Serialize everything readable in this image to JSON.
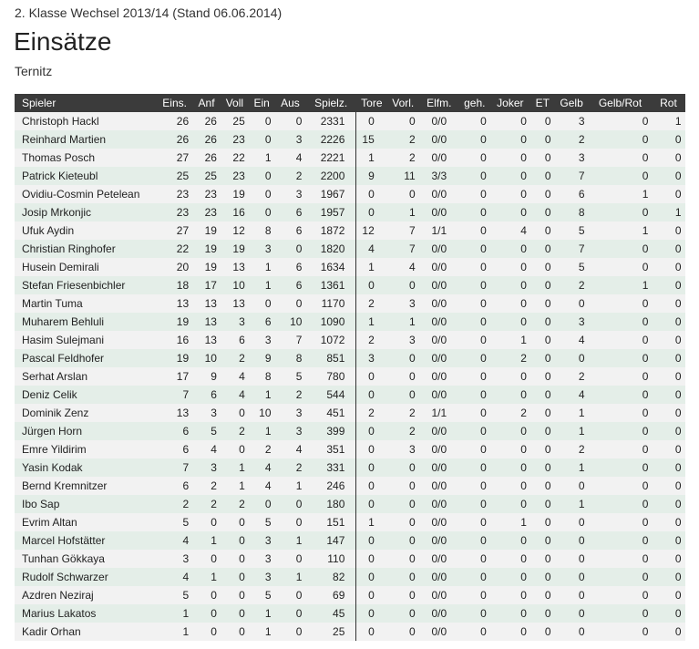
{
  "header": {
    "subtitle": "2. Klasse Wechsel 2013/14 (Stand 06.06.2014)",
    "title": "Einsätze",
    "team": "Ternitz"
  },
  "table": {
    "columns": [
      "Spieler",
      "Eins.",
      "Anf",
      "Voll",
      "Ein",
      "Aus",
      "Spielz.",
      "Tore",
      "Vorl.",
      "Elfm.",
      "geh.",
      "Joker",
      "ET",
      "Gelb",
      "Gelb/Rot",
      "Rot"
    ],
    "rows": [
      [
        "Christoph Hackl",
        "26",
        "26",
        "25",
        "0",
        "0",
        "2331",
        "0",
        "0",
        "0/0",
        "0",
        "0",
        "0",
        "3",
        "0",
        "1"
      ],
      [
        "Reinhard Martien",
        "26",
        "26",
        "23",
        "0",
        "3",
        "2226",
        "15",
        "2",
        "0/0",
        "0",
        "0",
        "0",
        "2",
        "0",
        "0"
      ],
      [
        "Thomas Posch",
        "27",
        "26",
        "22",
        "1",
        "4",
        "2221",
        "1",
        "2",
        "0/0",
        "0",
        "0",
        "0",
        "3",
        "0",
        "0"
      ],
      [
        "Patrick Kieteubl",
        "25",
        "25",
        "23",
        "0",
        "2",
        "2200",
        "9",
        "11",
        "3/3",
        "0",
        "0",
        "0",
        "7",
        "0",
        "0"
      ],
      [
        "Ovidiu-Cosmin Petelean",
        "23",
        "23",
        "19",
        "0",
        "3",
        "1967",
        "0",
        "0",
        "0/0",
        "0",
        "0",
        "0",
        "6",
        "1",
        "0"
      ],
      [
        "Josip Mrkonjic",
        "23",
        "23",
        "16",
        "0",
        "6",
        "1957",
        "0",
        "1",
        "0/0",
        "0",
        "0",
        "0",
        "8",
        "0",
        "1"
      ],
      [
        "Ufuk Aydin",
        "27",
        "19",
        "12",
        "8",
        "6",
        "1872",
        "12",
        "7",
        "1/1",
        "0",
        "4",
        "0",
        "5",
        "1",
        "0"
      ],
      [
        "Christian Ringhofer",
        "22",
        "19",
        "19",
        "3",
        "0",
        "1820",
        "4",
        "7",
        "0/0",
        "0",
        "0",
        "0",
        "7",
        "0",
        "0"
      ],
      [
        "Husein Demirali",
        "20",
        "19",
        "13",
        "1",
        "6",
        "1634",
        "1",
        "4",
        "0/0",
        "0",
        "0",
        "0",
        "5",
        "0",
        "0"
      ],
      [
        "Stefan Friesenbichler",
        "18",
        "17",
        "10",
        "1",
        "6",
        "1361",
        "0",
        "0",
        "0/0",
        "0",
        "0",
        "0",
        "2",
        "1",
        "0"
      ],
      [
        "Martin Tuma",
        "13",
        "13",
        "13",
        "0",
        "0",
        "1170",
        "2",
        "3",
        "0/0",
        "0",
        "0",
        "0",
        "0",
        "0",
        "0"
      ],
      [
        "Muharem Behluli",
        "19",
        "13",
        "3",
        "6",
        "10",
        "1090",
        "1",
        "1",
        "0/0",
        "0",
        "0",
        "0",
        "3",
        "0",
        "0"
      ],
      [
        "Hasim Sulejmani",
        "16",
        "13",
        "6",
        "3",
        "7",
        "1072",
        "2",
        "3",
        "0/0",
        "0",
        "1",
        "0",
        "4",
        "0",
        "0"
      ],
      [
        "Pascal Feldhofer",
        "19",
        "10",
        "2",
        "9",
        "8",
        "851",
        "3",
        "0",
        "0/0",
        "0",
        "2",
        "0",
        "0",
        "0",
        "0"
      ],
      [
        "Serhat Arslan",
        "17",
        "9",
        "4",
        "8",
        "5",
        "780",
        "0",
        "0",
        "0/0",
        "0",
        "0",
        "0",
        "2",
        "0",
        "0"
      ],
      [
        "Deniz Celik",
        "7",
        "6",
        "4",
        "1",
        "2",
        "544",
        "0",
        "0",
        "0/0",
        "0",
        "0",
        "0",
        "4",
        "0",
        "0"
      ],
      [
        "Dominik Zenz",
        "13",
        "3",
        "0",
        "10",
        "3",
        "451",
        "2",
        "2",
        "1/1",
        "0",
        "2",
        "0",
        "1",
        "0",
        "0"
      ],
      [
        "Jürgen Horn",
        "6",
        "5",
        "2",
        "1",
        "3",
        "399",
        "0",
        "2",
        "0/0",
        "0",
        "0",
        "0",
        "1",
        "0",
        "0"
      ],
      [
        "Emre Yildirim",
        "6",
        "4",
        "0",
        "2",
        "4",
        "351",
        "0",
        "3",
        "0/0",
        "0",
        "0",
        "0",
        "2",
        "0",
        "0"
      ],
      [
        "Yasin Kodak",
        "7",
        "3",
        "1",
        "4",
        "2",
        "331",
        "0",
        "0",
        "0/0",
        "0",
        "0",
        "0",
        "1",
        "0",
        "0"
      ],
      [
        "Bernd Kremnitzer",
        "6",
        "2",
        "1",
        "4",
        "1",
        "246",
        "0",
        "0",
        "0/0",
        "0",
        "0",
        "0",
        "0",
        "0",
        "0"
      ],
      [
        "Ibo Sap",
        "2",
        "2",
        "2",
        "0",
        "0",
        "180",
        "0",
        "0",
        "0/0",
        "0",
        "0",
        "0",
        "1",
        "0",
        "0"
      ],
      [
        "Evrim Altan",
        "5",
        "0",
        "0",
        "5",
        "0",
        "151",
        "1",
        "0",
        "0/0",
        "0",
        "1",
        "0",
        "0",
        "0",
        "0"
      ],
      [
        "Marcel Hofstätter",
        "4",
        "1",
        "0",
        "3",
        "1",
        "147",
        "0",
        "0",
        "0/0",
        "0",
        "0",
        "0",
        "0",
        "0",
        "0"
      ],
      [
        "Tunhan Gökkaya",
        "3",
        "0",
        "0",
        "3",
        "0",
        "110",
        "0",
        "0",
        "0/0",
        "0",
        "0",
        "0",
        "0",
        "0",
        "0"
      ],
      [
        "Rudolf Schwarzer",
        "4",
        "1",
        "0",
        "3",
        "1",
        "82",
        "0",
        "0",
        "0/0",
        "0",
        "0",
        "0",
        "0",
        "0",
        "0"
      ],
      [
        "Azdren Neziraj",
        "5",
        "0",
        "0",
        "5",
        "0",
        "69",
        "0",
        "0",
        "0/0",
        "0",
        "0",
        "0",
        "0",
        "0",
        "0"
      ],
      [
        "Marius Lakatos",
        "1",
        "0",
        "0",
        "1",
        "0",
        "45",
        "0",
        "0",
        "0/0",
        "0",
        "0",
        "0",
        "0",
        "0",
        "0"
      ],
      [
        "Kadir Orhan",
        "1",
        "0",
        "0",
        "1",
        "0",
        "25",
        "0",
        "0",
        "0/0",
        "0",
        "0",
        "0",
        "0",
        "0",
        "0"
      ]
    ]
  }
}
